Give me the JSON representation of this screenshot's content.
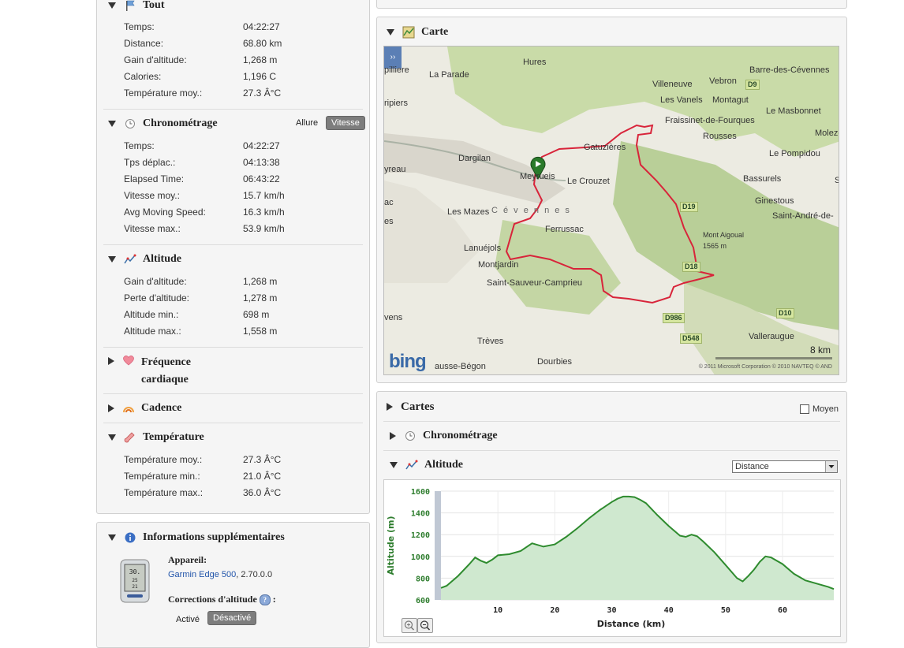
{
  "left": {
    "tout": {
      "title": "Tout",
      "rows": [
        {
          "label": "Temps:",
          "value": "04:22:27"
        },
        {
          "label": "Distance:",
          "value": "68.80 km"
        },
        {
          "label": "Gain d'altitude:",
          "value": "1,268 m"
        },
        {
          "label": "Calories:",
          "value": "1,196 C"
        },
        {
          "label": "Température moy.:",
          "value": "27.3 Â°C"
        }
      ]
    },
    "chrono": {
      "title": "Chronométrage",
      "toggle_allure": "Allure",
      "toggle_vitesse": "Vitesse",
      "rows": [
        {
          "label": "Temps:",
          "value": "04:22:27"
        },
        {
          "label": "Tps déplac.:",
          "value": "04:13:38"
        },
        {
          "label": "Elapsed Time:",
          "value": "06:43:22"
        },
        {
          "label": "Vitesse moy.:",
          "value": "15.7 km/h"
        },
        {
          "label": "Avg Moving Speed:",
          "value": "16.3 km/h"
        },
        {
          "label": "Vitesse max.:",
          "value": "53.9 km/h"
        }
      ]
    },
    "altitude": {
      "title": "Altitude",
      "rows": [
        {
          "label": "Gain d'altitude:",
          "value": "1,268 m"
        },
        {
          "label": "Perte d'altitude:",
          "value": "1,278 m"
        },
        {
          "label": "Altitude min.:",
          "value": "698 m"
        },
        {
          "label": "Altitude max.:",
          "value": "1,558 m"
        }
      ]
    },
    "frequence": {
      "title_line1": "Fréquence",
      "title_line2": "cardiaque"
    },
    "cadence": {
      "title": "Cadence"
    },
    "temperature": {
      "title": "Température",
      "rows": [
        {
          "label": "Température moy.:",
          "value": "27.3 Â°C"
        },
        {
          "label": "Température min.:",
          "value": "21.0 Â°C"
        },
        {
          "label": "Température max.:",
          "value": "36.0 Â°C"
        }
      ]
    },
    "info": {
      "title": "Informations supplémentaires",
      "device_label": "Appareil:",
      "device_name": "Garmin Edge 500",
      "device_version": ", 2.70.0.0",
      "corrections_label": "Corrections d'altitude",
      "corrections_colon": ":",
      "active": "Activé",
      "inactive": "Désactivé"
    }
  },
  "map": {
    "title": "Carte",
    "expand_label": "››",
    "bing": "bing",
    "scale": "8 km",
    "copyright": "© 2011 Microsoft Corporation   © 2010 NAVTEQ   © AND",
    "places": [
      "Hures",
      "pilliere",
      "La Parade",
      "Villeneuve",
      "Vebron",
      "Barre-des-Cévennes",
      "Les Vanels",
      "Montagut",
      "Le Masbonnet",
      "ripiers",
      "Fraissinet-de-Fourques",
      "Molezo",
      "Rousses",
      "Gatuzières",
      "Dargilan",
      "Le Pompidou",
      "yreau",
      "Meyrueis",
      "Le Crouzet",
      "Bassurels",
      "ac",
      "Ginestous",
      "Les Mazes",
      "C é v e n n e s",
      "Saint-André-de-",
      "es",
      "Ferrussac",
      "Mont Aigoual",
      "1565 m",
      "Lanuéjols",
      "Montjardin",
      "Saint-Sauveur-Camprieu",
      "vens",
      "Trèves",
      "Valleraugue",
      "Dourbies",
      "ausse-Bégon",
      "S"
    ],
    "roads": [
      "D9",
      "D19",
      "D18",
      "D986",
      "D548",
      "D10"
    ]
  },
  "cartes": {
    "title": "Cartes",
    "moyen": "Moyen",
    "chrono_title": "Chronométrage",
    "altitude_title": "Altitude",
    "select_value": "Distance",
    "zoom_in": "zoom-in",
    "zoom_out": "zoom-out"
  },
  "chart_data": {
    "type": "area",
    "title": "",
    "xlabel": "Distance (km)",
    "ylabel": "Altitude (m)",
    "xlim": [
      0,
      69
    ],
    "ylim": [
      600,
      1600
    ],
    "xticks": [
      10,
      20,
      30,
      40,
      50,
      60
    ],
    "yticks": [
      600,
      800,
      1000,
      1200,
      1400,
      1600
    ],
    "grid": true,
    "legend": "none",
    "color": "#2e8b2e",
    "fill": "#cfe8cf",
    "x": [
      0,
      1,
      3,
      5,
      6,
      7,
      8,
      9,
      10,
      12,
      14,
      16,
      18,
      20,
      22,
      24,
      26,
      28,
      30,
      31,
      32,
      33,
      34,
      35,
      36,
      38,
      40,
      42,
      43,
      44,
      45,
      46,
      48,
      50,
      52,
      53,
      54,
      55,
      56,
      57,
      58,
      60,
      62,
      64,
      66,
      68,
      69
    ],
    "y": [
      710,
      730,
      820,
      930,
      990,
      960,
      940,
      970,
      1010,
      1020,
      1050,
      1120,
      1090,
      1110,
      1180,
      1260,
      1350,
      1430,
      1500,
      1530,
      1550,
      1550,
      1545,
      1520,
      1490,
      1380,
      1280,
      1190,
      1180,
      1200,
      1185,
      1140,
      1040,
      920,
      800,
      770,
      820,
      880,
      950,
      1000,
      990,
      930,
      840,
      780,
      750,
      720,
      700
    ]
  }
}
